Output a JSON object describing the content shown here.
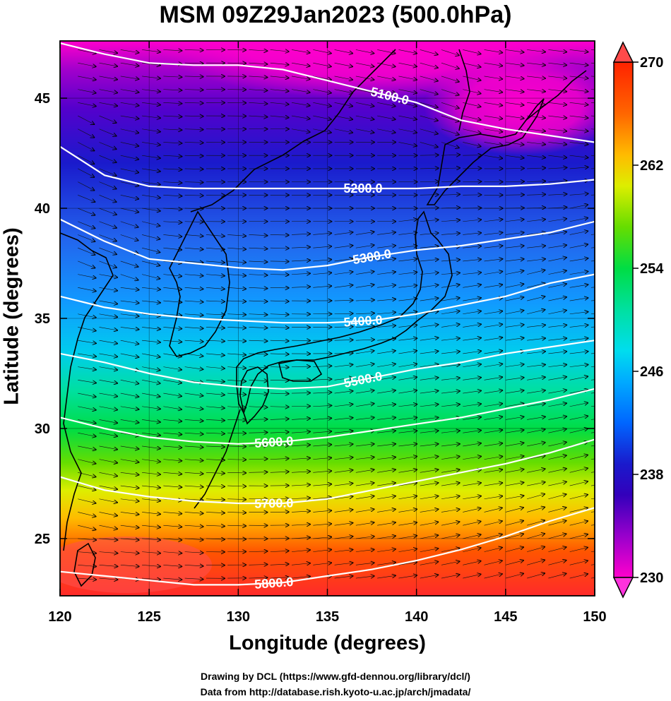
{
  "title": "MSM 09Z29Jan2023 (500.0hPa)",
  "xlabel": "Longitude (degrees)",
  "ylabel": "Latitude  (degrees)",
  "credits": [
    "Drawing by DCL (https://www.gfd-dennou.org/library/dcl/)",
    "Data from http://database.rish.kyoto-u.ac.jp/arch/jmadata/"
  ],
  "chart_data": {
    "type": "heatmap",
    "x_ticks": [
      "120",
      "125",
      "130",
      "135",
      "140",
      "145",
      "150"
    ],
    "y_ticks": [
      "25",
      "30",
      "35",
      "40",
      "45"
    ],
    "xlim": [
      120,
      150
    ],
    "ylim": [
      22.4,
      47.6
    ],
    "colorbar": {
      "ticks": [
        "230",
        "238",
        "246",
        "254",
        "262",
        "270"
      ],
      "min": 230,
      "max": 270,
      "colors": [
        "#ff00cc",
        "#7a00cc",
        "#1a1acc",
        "#0066ff",
        "#00ccff",
        "#00e0b0",
        "#00dd44",
        "#66dd00",
        "#ccee00",
        "#ffcc00",
        "#ff7700",
        "#ff2200",
        "#ff4a4a"
      ]
    },
    "contours": [
      {
        "label": "5100.0",
        "points": [
          [
            120.0,
            47.5
          ],
          [
            122.5,
            47.0
          ],
          [
            125.0,
            46.6
          ],
          [
            127.5,
            46.5
          ],
          [
            130.0,
            46.5
          ],
          [
            132.5,
            46.3
          ],
          [
            135.0,
            45.8
          ],
          [
            137.5,
            45.3
          ],
          [
            140.0,
            44.8
          ],
          [
            142.5,
            44.0
          ],
          [
            145.0,
            43.6
          ],
          [
            147.5,
            43.3
          ],
          [
            150.0,
            43.0
          ]
        ]
      },
      {
        "label": "5200.0",
        "points": [
          [
            120.0,
            42.8
          ],
          [
            122.5,
            41.5
          ],
          [
            125.0,
            41.0
          ],
          [
            127.5,
            40.9
          ],
          [
            130.0,
            40.9
          ],
          [
            132.5,
            40.9
          ],
          [
            135.0,
            40.9
          ],
          [
            137.5,
            40.9
          ],
          [
            140.0,
            40.9
          ],
          [
            142.5,
            41.0
          ],
          [
            145.0,
            41.0
          ],
          [
            147.5,
            41.1
          ],
          [
            150.0,
            41.3
          ]
        ]
      },
      {
        "label": "5300.0",
        "points": [
          [
            120.0,
            39.5
          ],
          [
            122.5,
            38.5
          ],
          [
            125.0,
            37.7
          ],
          [
            127.5,
            37.5
          ],
          [
            130.0,
            37.3
          ],
          [
            132.5,
            37.2
          ],
          [
            135.0,
            37.4
          ],
          [
            137.5,
            37.8
          ],
          [
            140.0,
            38.1
          ],
          [
            142.5,
            38.3
          ],
          [
            145.0,
            38.6
          ],
          [
            147.5,
            38.9
          ],
          [
            150.0,
            39.4
          ]
        ]
      },
      {
        "label": "5400.0",
        "points": [
          [
            120.0,
            36.0
          ],
          [
            122.5,
            35.5
          ],
          [
            125.0,
            35.2
          ],
          [
            127.5,
            35.0
          ],
          [
            130.0,
            34.9
          ],
          [
            132.5,
            34.8
          ],
          [
            135.0,
            34.8
          ],
          [
            137.5,
            34.9
          ],
          [
            140.0,
            35.2
          ],
          [
            142.5,
            35.6
          ],
          [
            145.0,
            36.0
          ],
          [
            147.5,
            36.6
          ],
          [
            150.0,
            37.0
          ]
        ]
      },
      {
        "label": "5500.0",
        "points": [
          [
            120.0,
            33.4
          ],
          [
            122.5,
            33.0
          ],
          [
            125.0,
            32.5
          ],
          [
            127.5,
            32.1
          ],
          [
            130.0,
            31.9
          ],
          [
            132.5,
            31.8
          ],
          [
            135.0,
            31.9
          ],
          [
            137.5,
            32.3
          ],
          [
            140.0,
            32.7
          ],
          [
            142.5,
            33.0
          ],
          [
            145.0,
            33.4
          ],
          [
            147.5,
            33.7
          ],
          [
            150.0,
            34.0
          ]
        ]
      },
      {
        "label": "5600.0",
        "points": [
          [
            120.0,
            30.5
          ],
          [
            122.5,
            30.0
          ],
          [
            125.0,
            29.6
          ],
          [
            127.5,
            29.4
          ],
          [
            130.0,
            29.3
          ],
          [
            132.5,
            29.4
          ],
          [
            135.0,
            29.6
          ],
          [
            137.5,
            29.9
          ],
          [
            140.0,
            30.2
          ],
          [
            142.5,
            30.5
          ],
          [
            145.0,
            30.9
          ],
          [
            147.5,
            31.3
          ],
          [
            150.0,
            31.8
          ]
        ]
      },
      {
        "label": "5700.0",
        "points": [
          [
            120.0,
            27.8
          ],
          [
            122.5,
            27.2
          ],
          [
            125.0,
            26.9
          ],
          [
            127.5,
            26.7
          ],
          [
            130.0,
            26.6
          ],
          [
            132.5,
            26.6
          ],
          [
            135.0,
            26.8
          ],
          [
            137.5,
            27.2
          ],
          [
            140.0,
            27.6
          ],
          [
            142.5,
            28.0
          ],
          [
            145.0,
            28.4
          ],
          [
            147.5,
            28.9
          ],
          [
            150.0,
            29.5
          ]
        ]
      },
      {
        "label": "5800.0",
        "points": [
          [
            120.0,
            23.5
          ],
          [
            122.5,
            23.3
          ],
          [
            125.0,
            23.1
          ],
          [
            127.5,
            22.9
          ],
          [
            130.0,
            22.9
          ],
          [
            132.5,
            23.0
          ],
          [
            135.0,
            23.3
          ],
          [
            137.5,
            23.6
          ],
          [
            140.0,
            24.0
          ],
          [
            142.5,
            24.5
          ],
          [
            145.0,
            25.1
          ],
          [
            147.5,
            25.8
          ],
          [
            150.0,
            26.4
          ]
        ]
      }
    ]
  }
}
